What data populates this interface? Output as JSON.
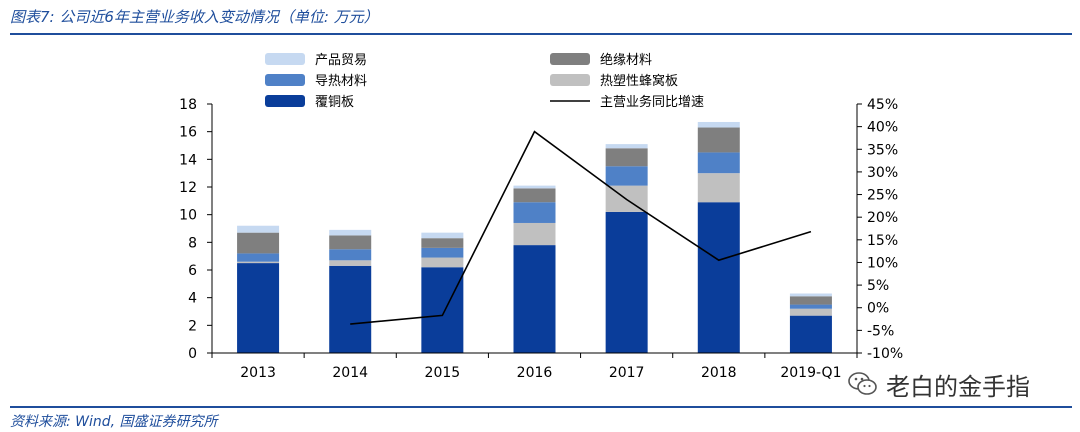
{
  "header": {
    "title": "图表7: 公司近6年主营业务收入变动情况（单位: 万元）"
  },
  "footer": {
    "source": "资料来源: Wind, 国盛证券研究所"
  },
  "watermark": {
    "text": "老白的金手指",
    "icon": "wechat-icon"
  },
  "colors": {
    "product_trade": "#c6d9f1",
    "thermal": "#4f81c7",
    "copper": "#0a3d9a",
    "insulation": "#7f7f7f",
    "honeycomb": "#c0c0c0",
    "growth_line": "#000000",
    "brand": "#1f4e9c"
  },
  "chart_data": {
    "type": "bar",
    "stacked": true,
    "categories": [
      "2013",
      "2014",
      "2015",
      "2016",
      "2017",
      "2018",
      "2019-Q1"
    ],
    "series": [
      {
        "name": "覆铜板",
        "key": "copper",
        "axis": "left",
        "values": [
          6.5,
          6.3,
          6.2,
          7.8,
          10.2,
          10.9,
          2.7
        ]
      },
      {
        "name": "热塑性蜂窝板",
        "key": "honeycomb",
        "axis": "left",
        "values": [
          0.1,
          0.4,
          0.7,
          1.6,
          1.9,
          2.1,
          0.5
        ]
      },
      {
        "name": "导热材料",
        "key": "thermal",
        "axis": "left",
        "values": [
          0.6,
          0.8,
          0.7,
          1.5,
          1.4,
          1.5,
          0.3
        ]
      },
      {
        "name": "绝缘材料",
        "key": "insulation",
        "axis": "left",
        "values": [
          1.5,
          1.0,
          0.7,
          1.0,
          1.3,
          1.8,
          0.6
        ]
      },
      {
        "name": "产品贸易",
        "key": "product_trade",
        "axis": "left",
        "values": [
          0.5,
          0.4,
          0.4,
          0.2,
          0.3,
          0.4,
          0.2
        ]
      },
      {
        "name": "主营业务同比增速",
        "key": "growth_line",
        "axis": "right",
        "type": "line",
        "values": [
          null,
          -3.6,
          -1.7,
          38.9,
          23.9,
          10.5,
          16.8
        ]
      }
    ],
    "left_axis": {
      "ylim": [
        0,
        18
      ],
      "ticks": [
        "0",
        "2",
        "4",
        "6",
        "8",
        "10",
        "12",
        "14",
        "16",
        "18"
      ]
    },
    "right_axis": {
      "ylim": [
        -10,
        45
      ],
      "ticks": [
        "-10%",
        "-5%",
        "0%",
        "5%",
        "10%",
        "15%",
        "20%",
        "25%",
        "30%",
        "35%",
        "40%",
        "45%"
      ]
    },
    "legend_order": [
      "产品贸易",
      "绝缘材料",
      "导热材料",
      "热塑性蜂窝板",
      "覆铜板",
      "主营业务同比增速"
    ],
    "legend_position": "top",
    "grid": false
  }
}
